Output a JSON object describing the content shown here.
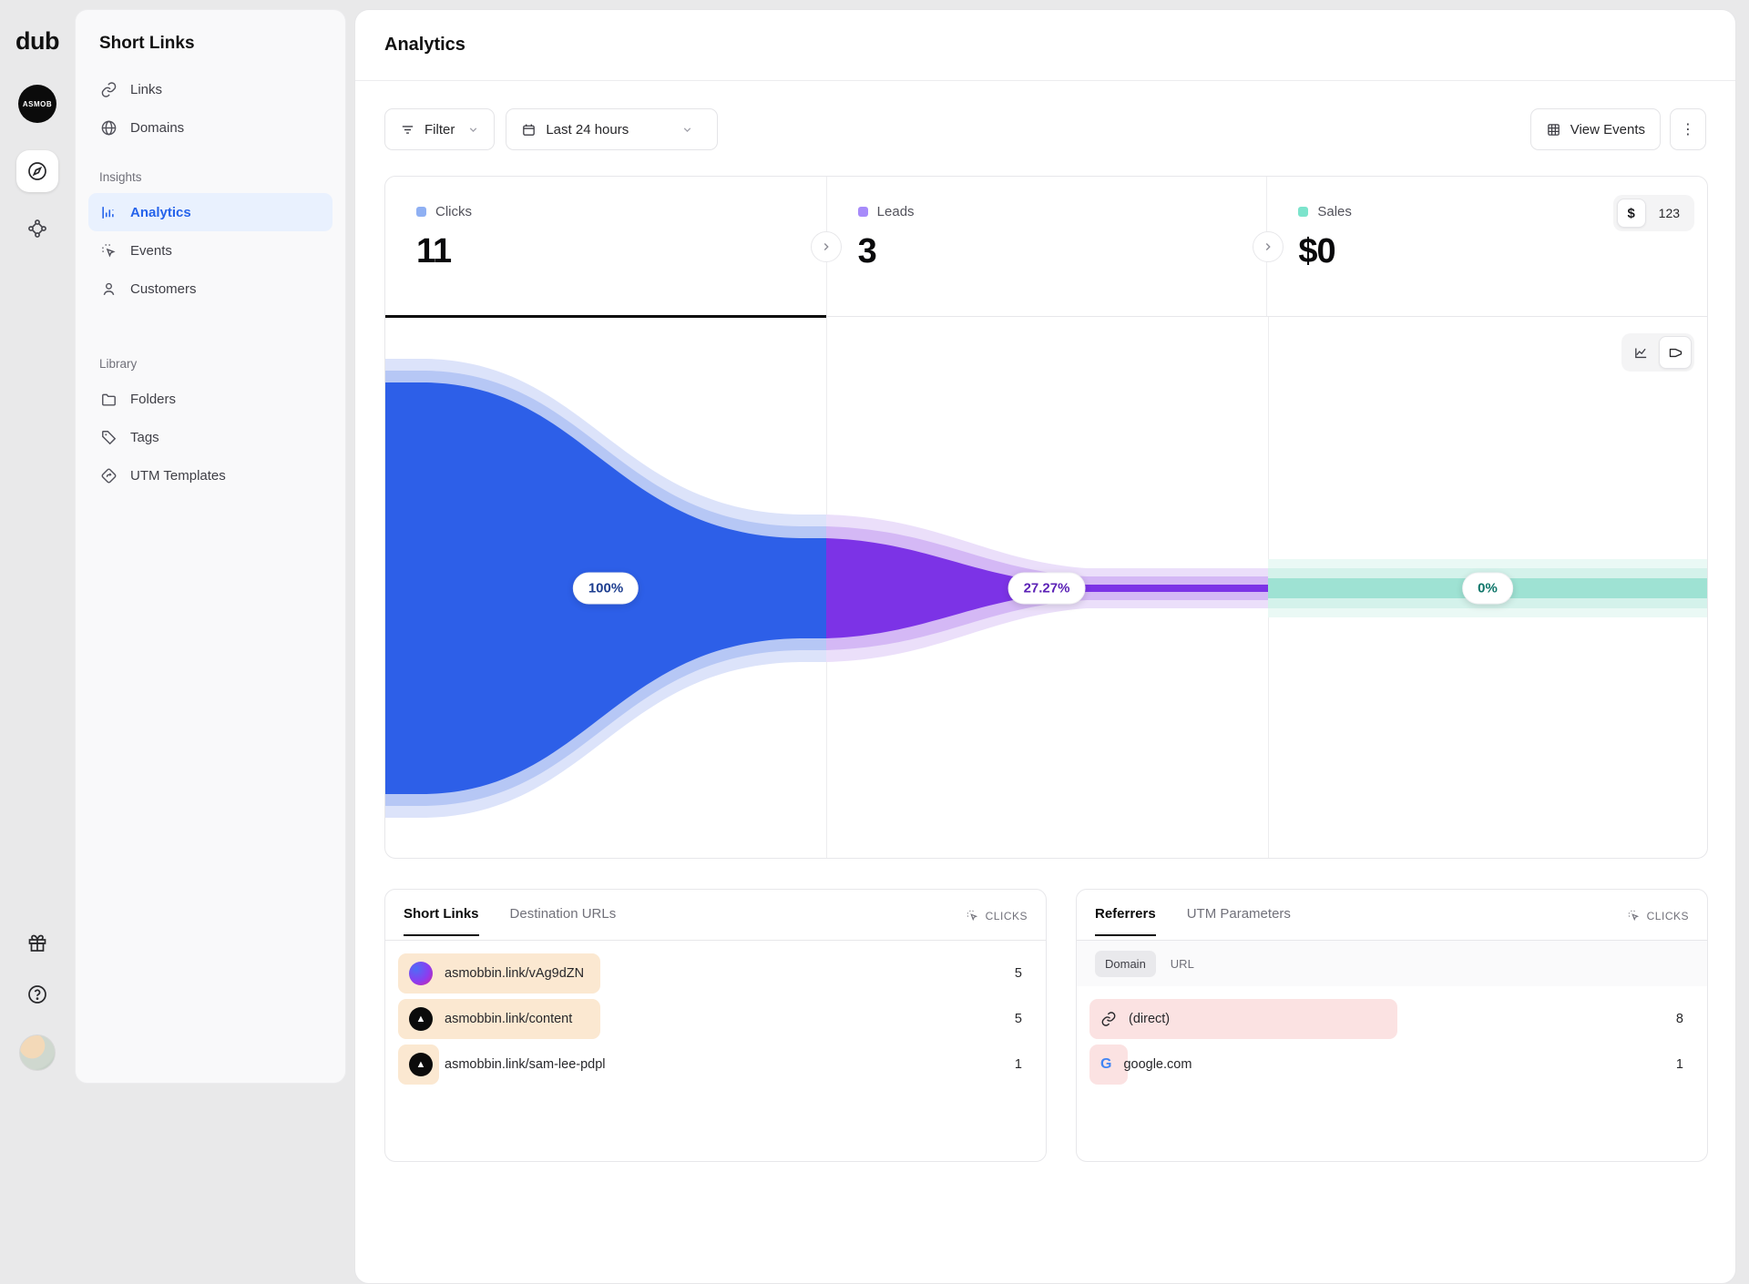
{
  "app": {
    "logo": "dub",
    "workspace_badge": "ASMOB"
  },
  "sidebar": {
    "title": "Short Links",
    "top_items": [
      {
        "label": "Links"
      },
      {
        "label": "Domains"
      }
    ],
    "sections": [
      {
        "label": "Insights",
        "items": [
          {
            "label": "Analytics",
            "active": true
          },
          {
            "label": "Events"
          },
          {
            "label": "Customers"
          }
        ]
      },
      {
        "label": "Library",
        "items": [
          {
            "label": "Folders"
          },
          {
            "label": "Tags"
          },
          {
            "label": "UTM Templates"
          }
        ]
      }
    ]
  },
  "header": {
    "title": "Analytics"
  },
  "toolbar": {
    "filter_label": "Filter",
    "date_range": "Last 24 hours",
    "view_events_label": "View Events",
    "kebab": "⋮"
  },
  "stats": [
    {
      "label": "Clicks",
      "value": "11",
      "marker_color": "#8FB0F3",
      "active": true
    },
    {
      "label": "Leads",
      "value": "3",
      "marker_color": "#A78BFA",
      "active": false
    },
    {
      "label": "Sales",
      "value": "$0",
      "marker_color": "#7CE4CC",
      "active": false
    }
  ],
  "sales_toggle": {
    "currency": "$",
    "count": "123"
  },
  "chart_data": {
    "type": "funnel",
    "title": "Conversion funnel: Clicks → Leads → Sales",
    "steps": [
      {
        "label": "Clicks",
        "value": 11,
        "percent": "100%",
        "color": "#2D5FE8",
        "pill_text_color": "#1C3D8F"
      },
      {
        "label": "Leads",
        "value": 3,
        "percent": "27.27%",
        "color": "#7C33E6",
        "pill_text_color": "#5B21B6"
      },
      {
        "label": "Sales",
        "value": 0,
        "percent": "0%",
        "color": "#9EE2D3",
        "pill_text_color": "#0E7569"
      }
    ],
    "legend_position": "top",
    "grid": false
  },
  "panels": {
    "left": {
      "tabs": [
        "Short Links",
        "Destination URLs"
      ],
      "active_tab": "Short Links",
      "metric_label": "CLICKS",
      "bar_color": "#FBE8D1",
      "rows": [
        {
          "label": "asmobbin.link/vAg9dZN",
          "value": 5,
          "icon": "gradient-avatar"
        },
        {
          "label": "asmobbin.link/content",
          "value": 5,
          "icon": "triangle-avatar"
        },
        {
          "label": "asmobbin.link/sam-lee-pdpl",
          "value": 1,
          "icon": "triangle-avatar"
        }
      ]
    },
    "right": {
      "tabs": [
        "Referrers",
        "UTM Parameters"
      ],
      "active_tab": "Referrers",
      "metric_label": "CLICKS",
      "bar_color": "#FBE2E2",
      "filters": [
        "Domain",
        "URL"
      ],
      "active_filter": "Domain",
      "rows": [
        {
          "label": "(direct)",
          "value": 8,
          "icon": "link-icon"
        },
        {
          "label": "google.com",
          "value": 1,
          "icon": "google-icon"
        }
      ]
    }
  }
}
